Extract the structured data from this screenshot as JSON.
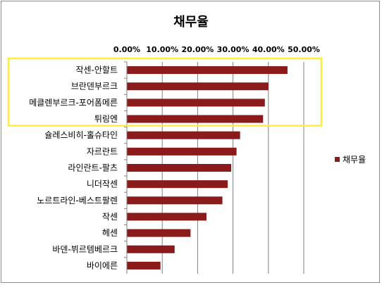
{
  "chart_data": {
    "type": "bar",
    "orientation": "horizontal",
    "title": "채무율",
    "categories": [
      "작센-안할트",
      "브란덴부르크",
      "메클렌부르크-포어폼메른",
      "튀링엔",
      "슐레스비히-홀슈타인",
      "자르란트",
      "라인란트-팔츠",
      "니더작센",
      "노르트라인-베스트팔렌",
      "작센",
      "헤센",
      "바덴-뷔르템베르크",
      "바이에른"
    ],
    "series": [
      {
        "name": "채무율",
        "color": "#8b1a1a",
        "values": [
          0.454,
          0.4,
          0.39,
          0.385,
          0.32,
          0.31,
          0.295,
          0.285,
          0.27,
          0.225,
          0.18,
          0.135,
          0.095
        ]
      }
    ],
    "xaxis": {
      "position": "top",
      "ticks": [
        "0.00%",
        "10.00%",
        "20.00%",
        "30.00%",
        "40.00%",
        "50.00%"
      ],
      "range": [
        0,
        0.5
      ]
    },
    "grid": true,
    "legend": "right",
    "highlight": {
      "categories": [
        "작센-안할트",
        "브란덴부르크",
        "메클렌부르크-포어폼메른",
        "튀링엔"
      ],
      "color": "#ffee33"
    }
  }
}
